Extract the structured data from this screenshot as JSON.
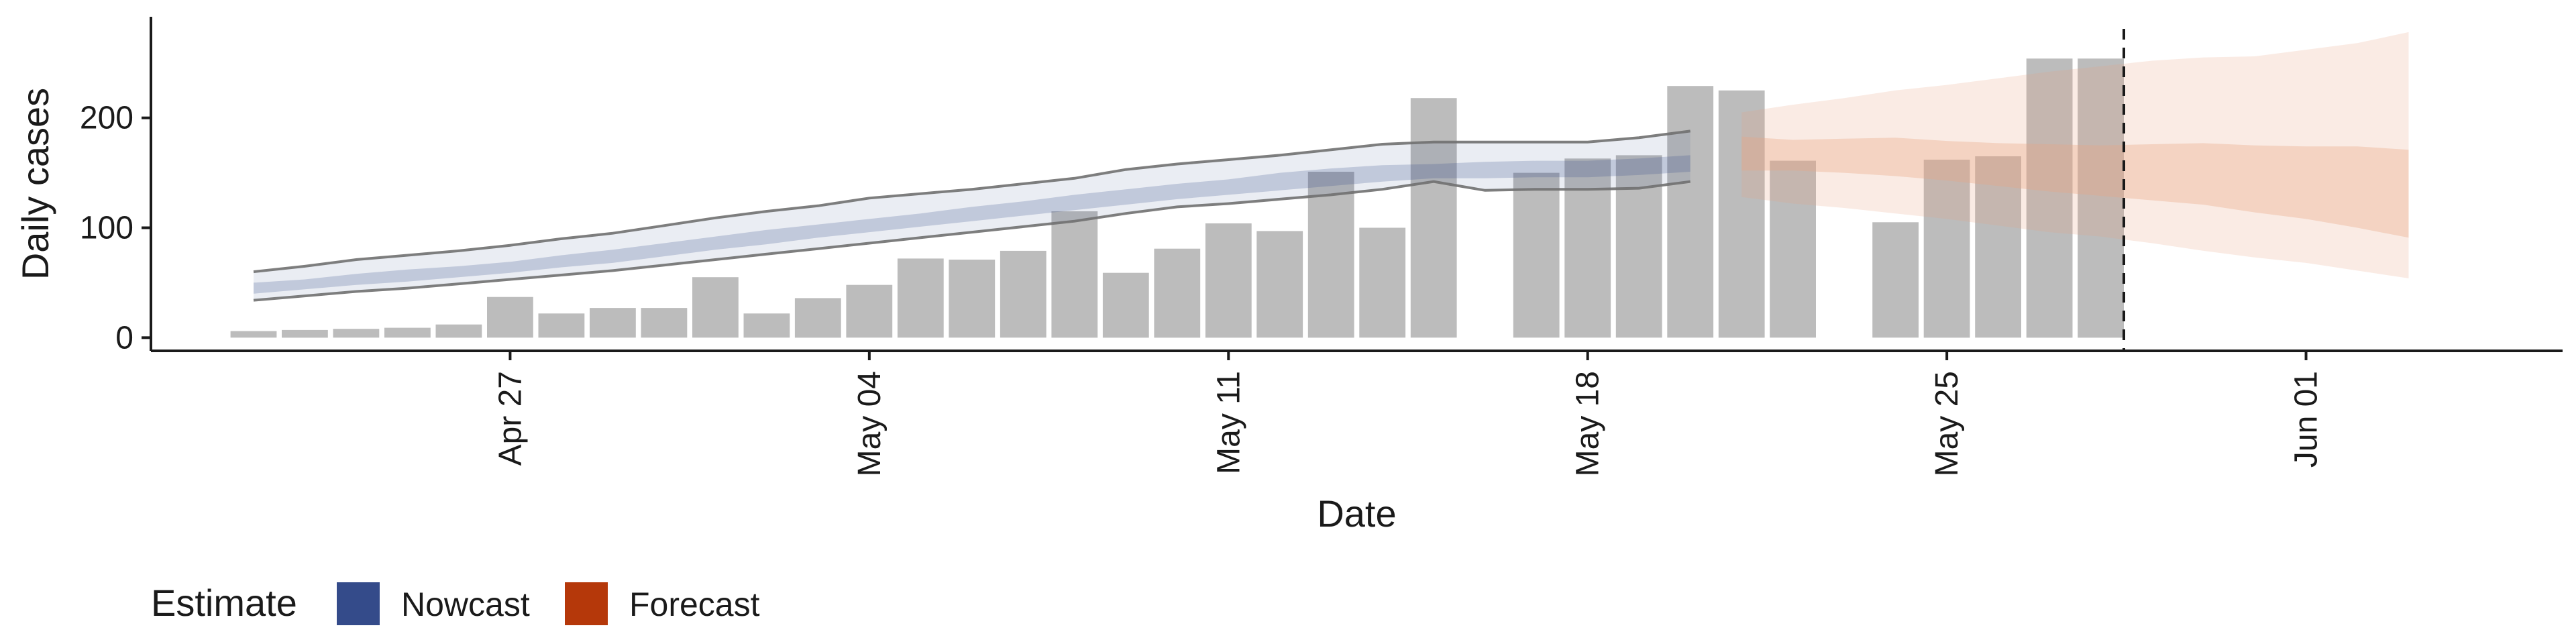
{
  "chart_data": {
    "type": "bar",
    "title": "",
    "xlabel": "Date",
    "ylabel": "Daily cases",
    "ylim": [
      -12,
      292
    ],
    "yticks": [
      0,
      100,
      200
    ],
    "y_tick_labels": [
      "0",
      "100",
      "200"
    ],
    "x_domain": [
      "2020-04-20",
      "2020-06-06"
    ],
    "x_ticks": [
      "2020-04-27",
      "2020-05-04",
      "2020-05-11",
      "2020-05-18",
      "2020-05-25",
      "2020-06-01"
    ],
    "x_tick_labels": [
      "Apr 27",
      "May 04",
      "May 11",
      "May 18",
      "May 25",
      "Jun 01"
    ],
    "x_tick_label_rotation": "vertical",
    "grid": false,
    "legend": {
      "position": "bottom-left",
      "title": "Estimate",
      "entries": [
        {
          "label": "Nowcast",
          "color": "#344b8a"
        },
        {
          "label": "Forecast",
          "color": "#b5380a"
        }
      ]
    },
    "bars": {
      "color": "#bcbcbc",
      "dates": [
        "2020-04-22",
        "2020-04-23",
        "2020-04-24",
        "2020-04-25",
        "2020-04-26",
        "2020-04-27",
        "2020-04-28",
        "2020-04-29",
        "2020-04-30",
        "2020-05-01",
        "2020-05-02",
        "2020-05-03",
        "2020-05-04",
        "2020-05-05",
        "2020-05-06",
        "2020-05-07",
        "2020-05-08",
        "2020-05-09",
        "2020-05-10",
        "2020-05-11",
        "2020-05-12",
        "2020-05-13",
        "2020-05-14",
        "2020-05-15",
        "2020-05-17",
        "2020-05-18",
        "2020-05-19",
        "2020-05-20",
        "2020-05-21",
        "2020-05-22",
        "2020-05-24",
        "2020-05-25",
        "2020-05-26",
        "2020-05-27",
        "2020-05-28"
      ],
      "values": [
        6,
        7,
        8,
        9,
        12,
        37,
        22,
        27,
        27,
        55,
        22,
        36,
        48,
        72,
        71,
        79,
        115,
        59,
        81,
        104,
        97,
        151,
        100,
        218,
        150,
        163,
        166,
        229,
        225,
        161,
        105,
        162,
        165,
        254,
        254
      ]
    },
    "nowcast": {
      "color": "#344b8a",
      "dates": [
        "2020-04-22",
        "2020-04-23",
        "2020-04-24",
        "2020-04-25",
        "2020-04-26",
        "2020-04-27",
        "2020-04-28",
        "2020-04-29",
        "2020-04-30",
        "2020-05-01",
        "2020-05-02",
        "2020-05-03",
        "2020-05-04",
        "2020-05-05",
        "2020-05-06",
        "2020-05-07",
        "2020-05-08",
        "2020-05-09",
        "2020-05-10",
        "2020-05-11",
        "2020-05-12",
        "2020-05-13",
        "2020-05-14",
        "2020-05-15",
        "2020-05-16",
        "2020-05-17",
        "2020-05-18",
        "2020-05-19",
        "2020-05-20"
      ],
      "outer_upper": [
        60,
        65,
        71,
        75,
        79,
        84,
        90,
        95,
        102,
        109,
        115,
        120,
        127,
        131,
        135,
        140,
        145,
        153,
        158,
        162,
        166,
        171,
        176,
        178,
        178,
        178,
        178,
        182,
        188
      ],
      "outer_lower": [
        34,
        38,
        42,
        45,
        49,
        53,
        57,
        61,
        66,
        71,
        76,
        81,
        86,
        91,
        96,
        101,
        106,
        113,
        119,
        122,
        126,
        130,
        135,
        142,
        134,
        135,
        135,
        136,
        142
      ],
      "inner_upper": [
        50,
        53,
        58,
        62,
        65,
        69,
        75,
        80,
        86,
        92,
        98,
        103,
        108,
        113,
        119,
        124,
        130,
        135,
        140,
        144,
        150,
        154,
        157,
        158,
        160,
        161,
        161,
        163,
        166
      ],
      "inner_lower": [
        40,
        44,
        48,
        51,
        55,
        59,
        64,
        68,
        74,
        80,
        85,
        91,
        96,
        101,
        106,
        111,
        116,
        121,
        126,
        130,
        134,
        138,
        142,
        145,
        145,
        146,
        146,
        148,
        151
      ]
    },
    "forecast": {
      "color": "#e8a584",
      "dates": [
        "2020-05-21",
        "2020-05-22",
        "2020-05-23",
        "2020-05-24",
        "2020-05-25",
        "2020-05-26",
        "2020-05-27",
        "2020-05-28",
        "2020-05-29",
        "2020-05-30",
        "2020-05-31",
        "2020-06-01",
        "2020-06-02",
        "2020-06-03"
      ],
      "outer_upper": [
        205,
        212,
        218,
        225,
        230,
        236,
        242,
        247,
        252,
        255,
        256,
        262,
        268,
        278
      ],
      "outer_lower": [
        128,
        122,
        118,
        113,
        108,
        102,
        96,
        92,
        86,
        79,
        73,
        68,
        61,
        54
      ],
      "inner_upper": [
        183,
        180,
        181,
        182,
        179,
        177,
        176,
        175,
        176,
        177,
        175,
        174,
        174,
        171
      ],
      "inner_lower": [
        152,
        152,
        150,
        147,
        143,
        138,
        133,
        129,
        125,
        121,
        114,
        108,
        100,
        91
      ]
    },
    "forecast_start_marker": "2020-05-28"
  }
}
